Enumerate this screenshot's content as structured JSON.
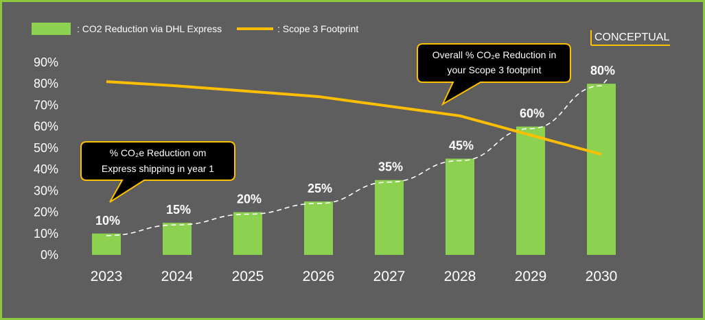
{
  "chart_data": {
    "type": "bar+line",
    "categories": [
      "2023",
      "2024",
      "2025",
      "2026",
      "2027",
      "2028",
      "2029",
      "2030"
    ],
    "series": [
      {
        "name": ": CO2 Reduction via DHL Express",
        "kind": "bar",
        "values": [
          10,
          15,
          20,
          25,
          35,
          45,
          60,
          80
        ],
        "value_labels": [
          "10%",
          "15%",
          "20%",
          "25%",
          "35%",
          "45%",
          "60%",
          "80%"
        ]
      },
      {
        "name": ": Scope 3 Footprint",
        "kind": "line",
        "values": [
          81,
          79,
          76.5,
          74,
          69.5,
          65,
          56,
          47
        ]
      }
    ],
    "yticks": [
      "0%",
      "10%",
      "20%",
      "30%",
      "40%",
      "50%",
      "60%",
      "70%",
      "80%",
      "90%"
    ],
    "ylim": [
      0,
      90
    ],
    "trend": "dashed exponential curve through bar tops",
    "badge": "CONCEPTUAL",
    "callouts": [
      {
        "lines": [
          "% CO₂e Reduction om",
          "Express shipping in year 1"
        ]
      },
      {
        "lines": [
          "Overall % CO₂e Reduction in",
          "your Scope 3 footprint"
        ]
      }
    ],
    "colors": {
      "background": "#5e5e5e",
      "bar": "#8dd151",
      "line": "#ffbf00",
      "callout_fill": "#000000",
      "callout_border": "#ffc000",
      "frame": "#8dc63f"
    }
  }
}
